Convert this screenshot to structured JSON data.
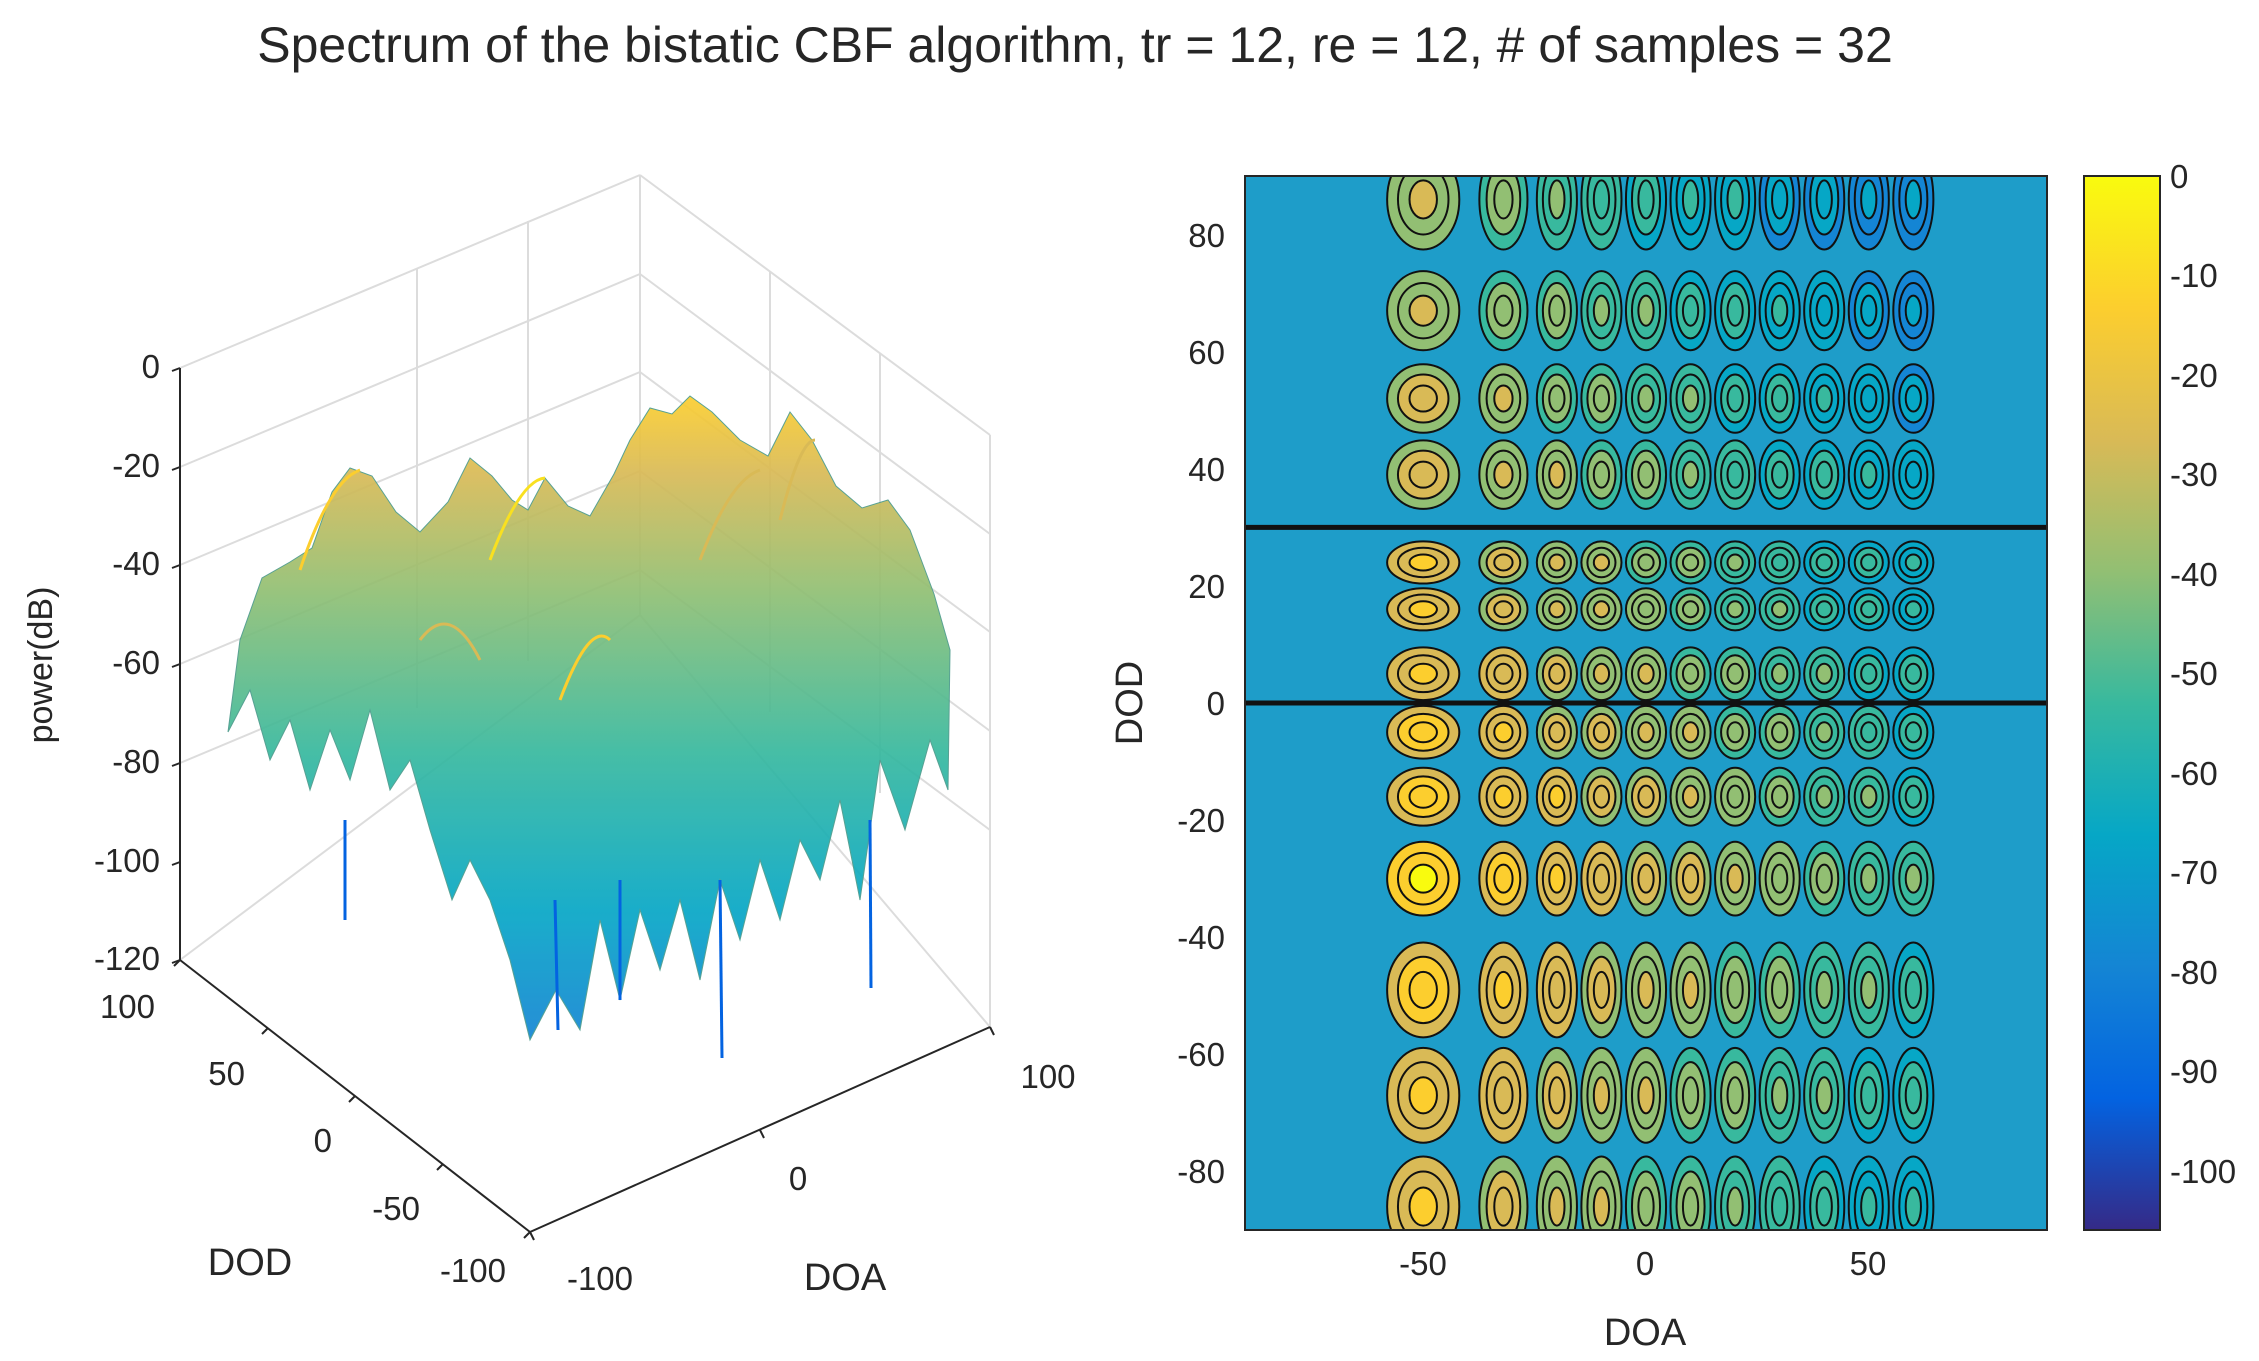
{
  "figure": {
    "title": "Spectrum of the bistatic CBF algorithm, tr = 12, re = 12, # of samples = 32"
  },
  "chart_data": [
    {
      "type": "surface",
      "title": "",
      "xlabel": "DOA",
      "ylabel": "DOD",
      "zlabel": "power(dB)",
      "xlim": [
        -100,
        100
      ],
      "ylim": [
        -100,
        100
      ],
      "zlim": [
        -120,
        0
      ],
      "x_ticks": [
        -100,
        0,
        100
      ],
      "y_ticks": [
        -100,
        -50,
        0,
        50,
        100
      ],
      "z_ticks": [
        0,
        -20,
        -40,
        -60,
        -80,
        -100,
        -120
      ],
      "x_tick_labels": [
        "-100",
        "0",
        "100"
      ],
      "y_tick_labels": [
        "-100",
        "-50",
        "0",
        "50",
        "100"
      ],
      "z_tick_labels": [
        "0",
        "-20",
        "-40",
        "-60",
        "-80",
        "-100",
        "-120"
      ],
      "grid": true,
      "colormap": "parula",
      "peak": {
        "doa": -50,
        "dod": -30,
        "power_db": 0
      }
    },
    {
      "type": "contour",
      "title": "",
      "xlabel": "DOA",
      "ylabel": "DOD",
      "xlim": [
        -90,
        90
      ],
      "ylim": [
        -90,
        90
      ],
      "x_ticks": [
        -50,
        0,
        50
      ],
      "y_ticks": [
        -80,
        -60,
        -40,
        -20,
        0,
        20,
        40,
        60,
        80
      ],
      "x_tick_labels": [
        "-50",
        "0",
        "50"
      ],
      "y_tick_labels": [
        "-80",
        "-60",
        "-40",
        "-20",
        "0",
        "20",
        "40",
        "60",
        "80"
      ],
      "colorbar": {
        "ticks": [
          0,
          -10,
          -20,
          -30,
          -40,
          -50,
          -60,
          -70,
          -80,
          -90,
          -100
        ],
        "tick_labels": [
          "0",
          "-10",
          "-20",
          "-30",
          "-40",
          "-50",
          "-60",
          "-70",
          "-80",
          "-90",
          "-100"
        ],
        "range": [
          -106,
          0
        ],
        "location": "right"
      },
      "sidelobe_doa": [
        -50,
        -32,
        -20,
        -10,
        0,
        10,
        20,
        30,
        40,
        50,
        60
      ],
      "sidelobe_dod": [
        -86,
        -67,
        -49,
        -30,
        -16,
        -5,
        5,
        16,
        24,
        39,
        52,
        67,
        86
      ],
      "null_dod": [
        0,
        30
      ],
      "peak": {
        "doa": -50,
        "dod": -30,
        "power_db": 0
      }
    }
  ],
  "colors": {
    "parula": [
      "#352a87",
      "#0363e1",
      "#1485d4",
      "#06a7c6",
      "#38b99e",
      "#92bf73",
      "#d9ba56",
      "#fcce2e",
      "#f9fb0e"
    ],
    "axis": "#262626",
    "grid": "#e6e6e6"
  }
}
